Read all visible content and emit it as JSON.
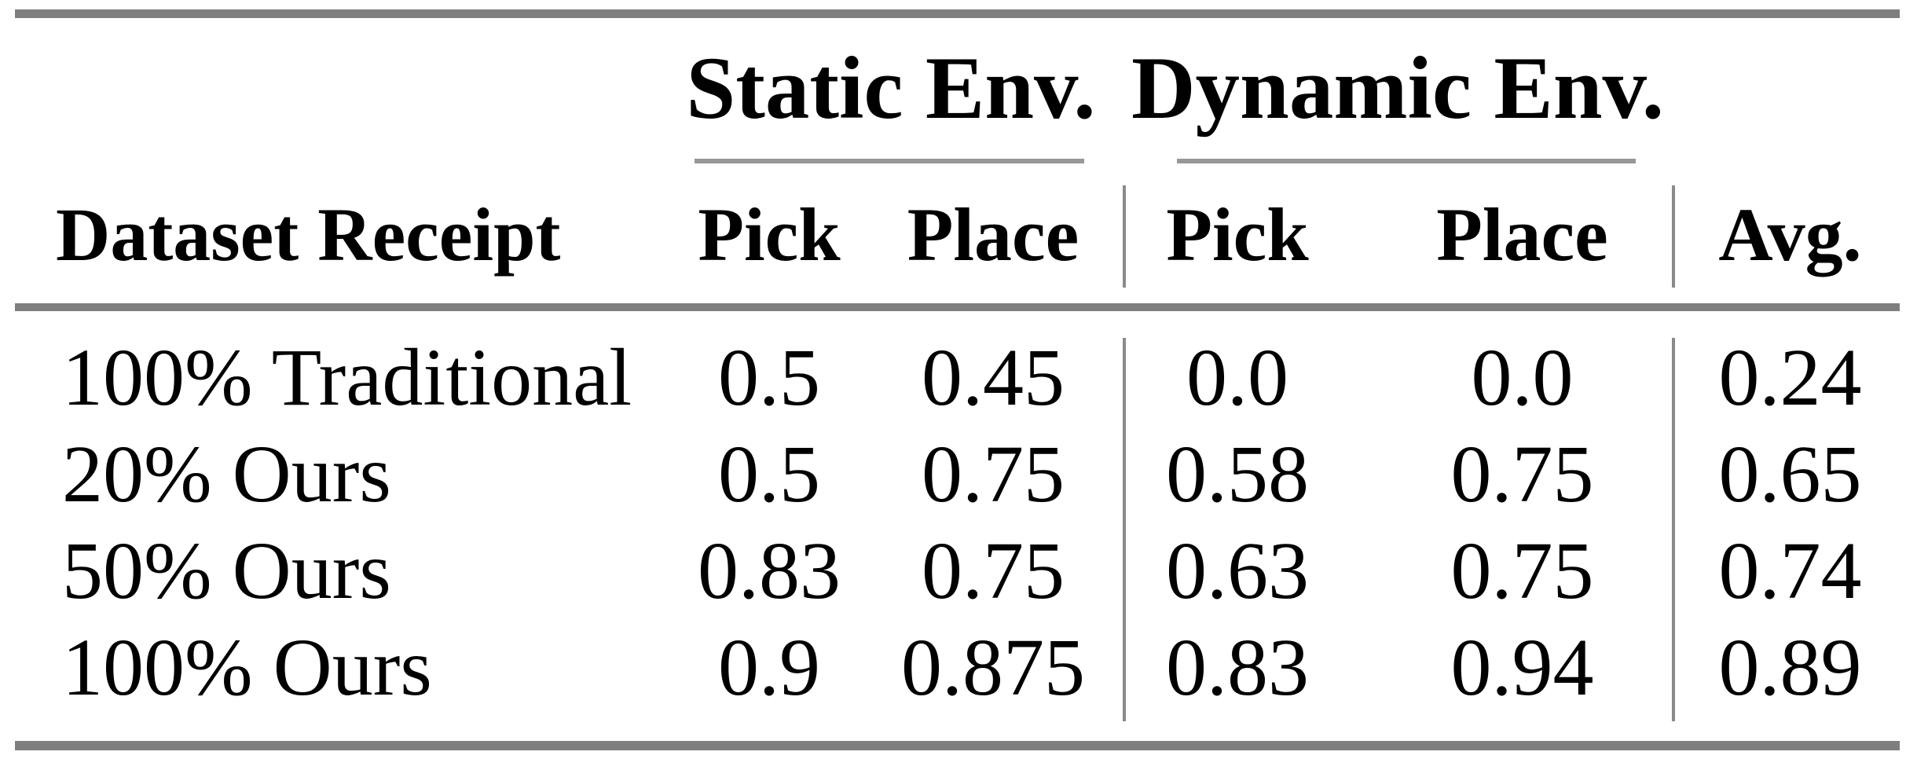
{
  "table": {
    "column_groups": [
      {
        "label": "Static Env."
      },
      {
        "label": "Dynamic Env."
      }
    ],
    "header": {
      "row_label": "Dataset Receipt",
      "static_pick": "Pick",
      "static_place": "Place",
      "dynamic_pick": "Pick",
      "dynamic_place": "Place",
      "avg": "Avg."
    },
    "rows": [
      {
        "label": "100% Traditional",
        "values": [
          "0.5",
          "0.45",
          "0.0",
          "0.0",
          "0.24"
        ]
      },
      {
        "label": "20% Ours",
        "values": [
          "0.5",
          "0.75",
          "0.58",
          "0.75",
          "0.65"
        ]
      },
      {
        "label": "50% Ours",
        "values": [
          "0.83",
          "0.75",
          "0.63",
          "0.75",
          "0.74"
        ]
      },
      {
        "label": "100% Ours",
        "values": [
          "0.9",
          "0.875",
          "0.83",
          "0.94",
          "0.89"
        ]
      }
    ]
  },
  "colors": {
    "heavy_rule": "#7e7e7e",
    "light_rule": "#979797",
    "vertical_rule": "#8a8a8a",
    "text": "#000000",
    "background": "#ffffff"
  }
}
